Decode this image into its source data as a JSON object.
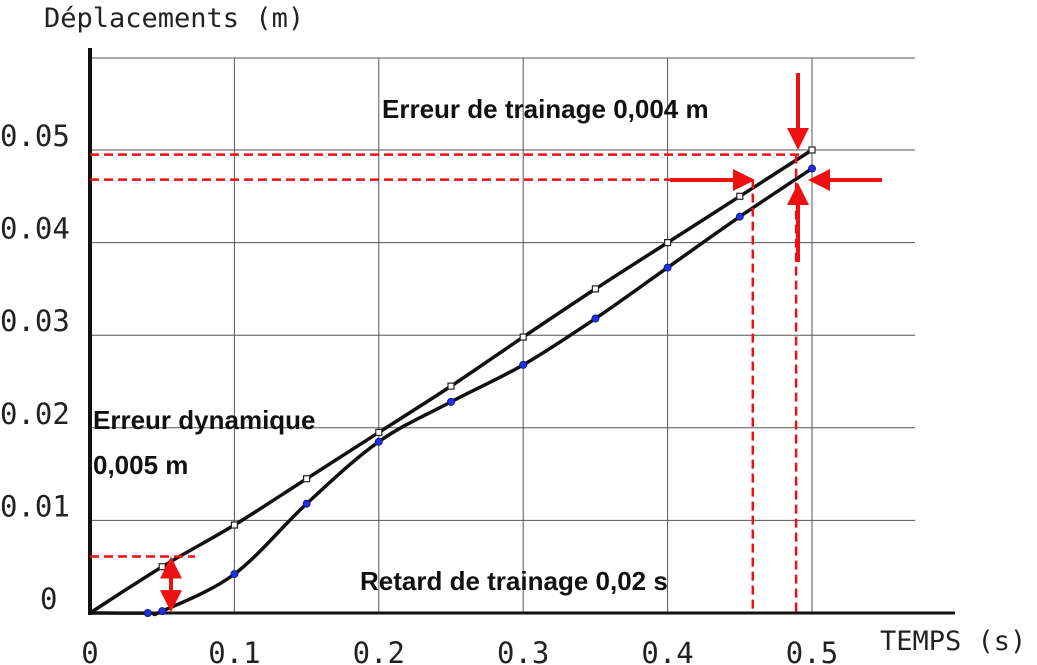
{
  "chart_data": {
    "type": "line",
    "ylabel": "Déplacements (m)",
    "xlabel": "TEMPS (s)",
    "xlim": [
      0,
      0.5
    ],
    "ylim": [
      0,
      0.05
    ],
    "x_ticks": [
      "0",
      "0.1",
      "0.2",
      "0.3",
      "0.4",
      "0.5"
    ],
    "y_ticks": [
      "0",
      "0.01",
      "0.02",
      "0.03",
      "0.04",
      "0.05"
    ],
    "grid": true,
    "series": [
      {
        "marker": "square",
        "color": "#111111",
        "x": [
          0,
          0.05,
          0.1,
          0.15,
          0.2,
          0.25,
          0.3,
          0.35,
          0.4,
          0.45,
          0.5
        ],
        "y": [
          0,
          0.005,
          0.0095,
          0.0145,
          0.0195,
          0.0245,
          0.0298,
          0.035,
          0.04,
          0.045,
          0.05
        ]
      },
      {
        "marker": "blue-dot",
        "color": "#111111",
        "marker_color": "#2233dd",
        "x": [
          0,
          0.04,
          0.05,
          0.1,
          0.15,
          0.2,
          0.25,
          0.3,
          0.35,
          0.4,
          0.45,
          0.5
        ],
        "y": [
          0,
          0,
          0.0002,
          0.0042,
          0.0118,
          0.0185,
          0.0228,
          0.0268,
          0.0318,
          0.0373,
          0.0428,
          0.048
        ]
      }
    ],
    "annotations": {
      "trainage_erreur": "Erreur de trainage 0,004 m",
      "erreur_dyn_line1": "Erreur dynamique",
      "erreur_dyn_line2": "0,005 m",
      "retard": "Retard de trainage 0,02 s"
    },
    "annotation_color": "#ee1111"
  }
}
